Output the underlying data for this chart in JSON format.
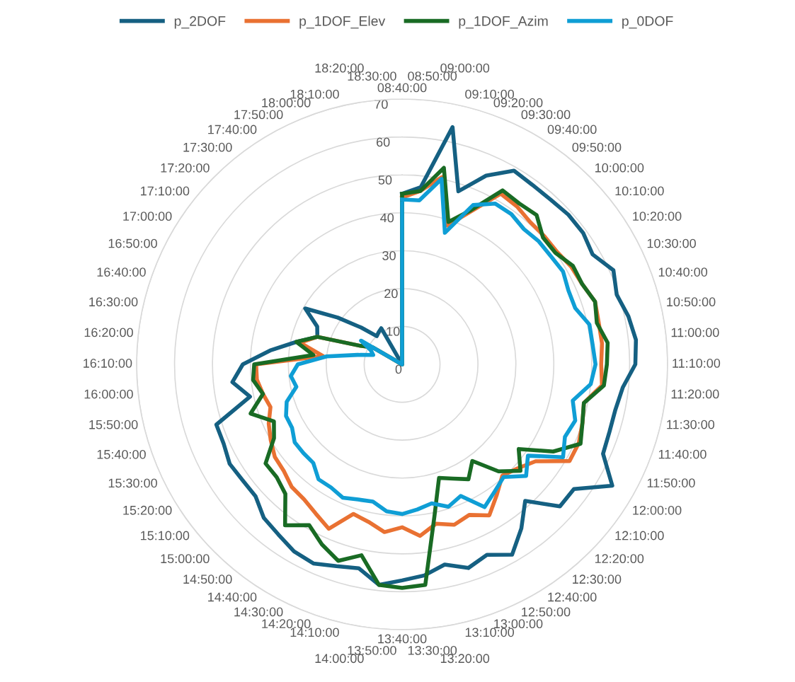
{
  "chart_data": {
    "type": "radar",
    "categories": [
      "08:40:00",
      "08:50:00",
      "09:00:00",
      "09:10:00",
      "09:20:00",
      "09:30:00",
      "09:40:00",
      "09:50:00",
      "10:00:00",
      "10:10:00",
      "10:20:00",
      "10:30:00",
      "10:40:00",
      "10:50:00",
      "11:00:00",
      "11:10:00",
      "11:20:00",
      "11:30:00",
      "11:40:00",
      "11:50:00",
      "12:00:00",
      "12:10:00",
      "12:20:00",
      "12:30:00",
      "12:40:00",
      "12:50:00",
      "13:00:00",
      "13:10:00",
      "13:20:00",
      "13:30:00",
      "13:40:00",
      "13:50:00",
      "14:00:00",
      "14:10:00",
      "14:20:00",
      "14:30:00",
      "14:40:00",
      "14:50:00",
      "15:00:00",
      "15:10:00",
      "15:20:00",
      "15:30:00",
      "15:40:00",
      "15:50:00",
      "16:00:00",
      "16:10:00",
      "16:20:00",
      "16:30:00",
      "16:40:00",
      "16:50:00",
      "17:00:00",
      "17:10:00",
      "17:20:00",
      "17:30:00",
      "17:40:00",
      "17:50:00",
      "18:00:00",
      "18:10:00",
      "18:20:00",
      "18:30:00"
    ],
    "series": [
      {
        "name": "p_2DOF",
        "color": "#156082",
        "values": [
          45,
          47,
          64,
          48,
          54.5,
          59,
          58.5,
          58.5,
          59,
          59,
          58,
          61,
          59.5,
          61,
          62,
          61.5,
          58.5,
          57.5,
          57.5,
          58,
          64,
          56,
          56,
          48.5,
          53.5,
          58,
          55,
          56.5,
          54,
          56,
          57,
          58.5,
          55,
          56,
          57.5,
          57,
          55.5,
          54.5,
          52,
          52,
          52.5,
          51.5,
          51.5,
          41,
          45,
          42,
          35,
          28.5,
          23.5,
          24.5,
          29.5,
          21,
          14.5,
          10,
          10.5,
          11,
          0,
          0,
          0,
          0
        ]
      },
      {
        "name": "p_1DOF_Elev",
        "color": "#e97132",
        "values": [
          44,
          46,
          50.5,
          38.5,
          44,
          52,
          51.5,
          50.5,
          50.5,
          50.5,
          51.5,
          52,
          53.5,
          53,
          53,
          52.5,
          53,
          49,
          50,
          51,
          51,
          43.5,
          41,
          39.5,
          42.5,
          46,
          43.5,
          44.5,
          43,
          45.5,
          43,
          44.5,
          42.5,
          41.5,
          47.5,
          45.5,
          44,
          43.5,
          42,
          41.5,
          40,
          38.5,
          36.5,
          37.5,
          38.5,
          38.5,
          21,
          27.5,
          23.5,
          12,
          9,
          0,
          0,
          0,
          0,
          0,
          0,
          0,
          0,
          0
        ]
      },
      {
        "name": "p_1DOF_Azim",
        "color": "#196b24",
        "values": [
          45,
          46,
          53,
          39.5,
          44.5,
          53,
          52.5,
          53,
          50,
          50,
          52,
          52,
          53.5,
          52.5,
          54.5,
          54,
          53.5,
          49,
          50,
          51.5,
          46,
          38,
          42,
          38,
          31.5,
          35,
          33,
          31.5,
          41,
          58.5,
          59,
          58.5,
          51.5,
          54.5,
          52,
          49,
          52.5,
          46,
          44.5,
          44.5,
          39,
          37,
          42,
          37.5,
          39.5,
          39,
          23.5,
          28.5,
          23.5,
          12,
          9,
          0,
          0,
          0,
          0,
          0,
          0,
          0,
          0,
          0
        ]
      },
      {
        "name": "p_0DOF",
        "color": "#0f9ed5",
        "values": [
          43.5,
          43.5,
          50,
          36.5,
          46,
          49,
          49,
          48,
          48.5,
          48.5,
          49,
          48,
          48,
          50.5,
          50.5,
          51,
          50,
          46,
          48,
          47,
          49,
          41,
          44,
          40,
          41.5,
          43.5,
          38,
          39.5,
          37.5,
          38.5,
          39.5,
          39,
          37,
          37.5,
          38.5,
          37.5,
          37.5,
          35,
          35,
          35,
          33.5,
          33.5,
          32,
          28.5,
          29.5,
          27.5,
          20,
          12,
          8,
          9,
          12.5,
          0,
          0,
          0,
          0,
          0,
          0,
          0,
          0,
          0
        ]
      }
    ],
    "ylim": [
      0,
      70
    ],
    "yticks": [
      0,
      10,
      20,
      30,
      40,
      50,
      60,
      70
    ],
    "grid": "y",
    "legend": "top",
    "marker": "none",
    "line_style": "solid"
  }
}
